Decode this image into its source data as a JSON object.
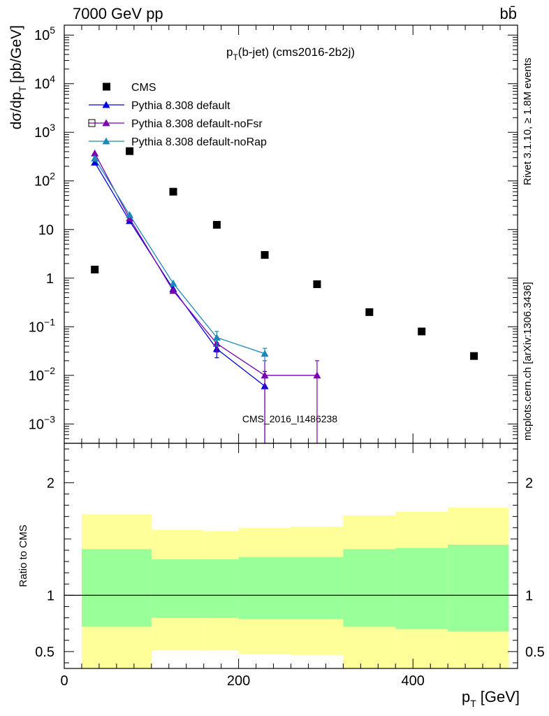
{
  "header": {
    "energy_label": "7000 GeV pp",
    "process_label": "bb̄",
    "rivet_label": "Rivet 3.1.10, ≥ 1.8M events",
    "mcplots_label": "mcplots.cern.ch [arXiv:1306.3436]",
    "watermark": "CMS_2016_I1486238"
  },
  "chart_data": [
    {
      "type": "scatter",
      "title_main": "p",
      "title_sub": "T",
      "title_rest": "(b-jet) (cms2016-2b2j)",
      "ylabel_main": "dσ/dp",
      "ylabel_sub": "T",
      "ylabel_unit": "[pb/GeV]",
      "yscale": "log",
      "xlim": [
        0,
        520
      ],
      "ylim": [
        0.0004,
        160000
      ],
      "yticks": [
        {
          "v": 0.001,
          "base": "10",
          "exp": "−3"
        },
        {
          "v": 0.01,
          "base": "10",
          "exp": "−2"
        },
        {
          "v": 0.1,
          "base": "10",
          "exp": "−1"
        },
        {
          "v": 1,
          "base": "1",
          "exp": ""
        },
        {
          "v": 10,
          "base": "10",
          "exp": ""
        },
        {
          "v": 100,
          "base": "10",
          "exp": "2"
        },
        {
          "v": 1000,
          "base": "10",
          "exp": "3"
        },
        {
          "v": 10000,
          "base": "10",
          "exp": "4"
        },
        {
          "v": 100000,
          "base": "10",
          "exp": "5"
        }
      ],
      "legend_placement": "top-left",
      "series": [
        {
          "name": "CMS",
          "marker": "square",
          "color": "#000000",
          "x": [
            35,
            75,
            125,
            175,
            230,
            290,
            350,
            410,
            470
          ],
          "y": [
            1.5,
            410,
            60,
            12.5,
            3.0,
            0.75,
            0.2,
            0.08,
            0.025
          ]
        },
        {
          "name": "Pythia 8.308 default",
          "marker": "triangle",
          "color": "#0000dd",
          "x": [
            35,
            75,
            125,
            175,
            230
          ],
          "y": [
            240,
            15,
            0.6,
            0.035,
            0.006
          ],
          "yerr": [
            0,
            0,
            0,
            0.012,
            0.006
          ]
        },
        {
          "name": "Pythia 8.308 default-noFsr",
          "marker": "triangle",
          "color": "#7a00b0",
          "x": [
            35,
            75,
            125,
            175,
            230,
            290
          ],
          "y": [
            370,
            17,
            0.55,
            0.045,
            0.01,
            0.01
          ],
          "yerr": [
            0,
            0,
            0,
            0.015,
            0.01,
            0.01
          ]
        },
        {
          "name": "Pythia 8.308 default-noRap",
          "marker": "triangle",
          "color": "#1a88b8",
          "x": [
            35,
            75,
            125,
            175,
            230
          ],
          "y": [
            290,
            20,
            0.78,
            0.06,
            0.028
          ],
          "yerr": [
            0,
            0,
            0,
            0.02,
            0.008
          ]
        }
      ]
    },
    {
      "type": "area",
      "ylabel": "Ratio to CMS",
      "xlabel_main": "p",
      "xlabel_sub": "T",
      "xlabel_unit": "[GeV]",
      "xlim": [
        0,
        520
      ],
      "ylim": [
        0.35,
        2.35
      ],
      "xticks": [
        0,
        200,
        400
      ],
      "yticks": [
        0.5,
        1,
        2
      ],
      "reference_line": 1,
      "bands": [
        {
          "name": "outer",
          "color": "#ffff99",
          "bins": [
            {
              "x0": 20,
              "x1": 100,
              "lo": 0.35,
              "hi": 1.72
            },
            {
              "x0": 100,
              "x1": 160,
              "lo": 0.51,
              "hi": 1.58
            },
            {
              "x0": 160,
              "x1": 200,
              "lo": 0.51,
              "hi": 1.57
            },
            {
              "x0": 200,
              "x1": 260,
              "lo": 0.48,
              "hi": 1.6
            },
            {
              "x0": 260,
              "x1": 320,
              "lo": 0.47,
              "hi": 1.61
            },
            {
              "x0": 320,
              "x1": 380,
              "lo": 0.35,
              "hi": 1.71
            },
            {
              "x0": 380,
              "x1": 440,
              "lo": 0.35,
              "hi": 1.74
            },
            {
              "x0": 440,
              "x1": 510,
              "lo": 0.35,
              "hi": 1.78
            }
          ]
        },
        {
          "name": "inner",
          "color": "#99ff99",
          "bins": [
            {
              "x0": 20,
              "x1": 100,
              "lo": 0.72,
              "hi": 1.41
            },
            {
              "x0": 100,
              "x1": 200,
              "lo": 0.8,
              "hi": 1.32
            },
            {
              "x0": 200,
              "x1": 320,
              "lo": 0.79,
              "hi": 1.34
            },
            {
              "x0": 320,
              "x1": 380,
              "lo": 0.72,
              "hi": 1.41
            },
            {
              "x0": 380,
              "x1": 440,
              "lo": 0.7,
              "hi": 1.42
            },
            {
              "x0": 440,
              "x1": 510,
              "lo": 0.68,
              "hi": 1.45
            }
          ]
        }
      ]
    }
  ]
}
